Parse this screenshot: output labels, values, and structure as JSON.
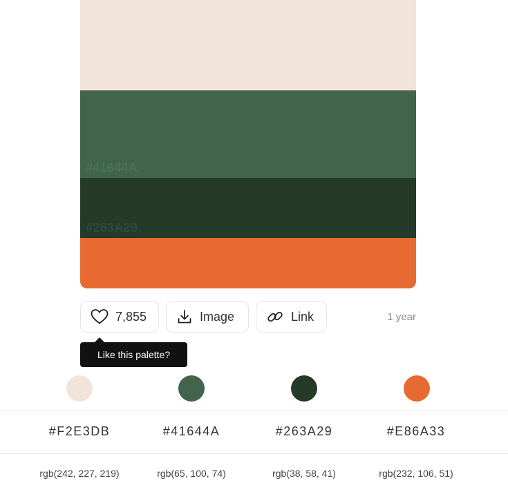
{
  "palette": {
    "colors": [
      {
        "hex": "#F2E3DB",
        "rgb": "rgb(242, 227, 219)",
        "band_label": "",
        "color": "#F2E3DB"
      },
      {
        "hex": "#41644A",
        "rgb": "rgb(65, 100, 74)",
        "band_label": "#41644A",
        "color": "#41644A"
      },
      {
        "hex": "#263A29",
        "rgb": "rgb(38, 58, 41)",
        "band_label": "#263A29",
        "color": "#263A29"
      },
      {
        "hex": "#E86A33",
        "rgb": "rgb(232, 106, 51)",
        "band_label": "",
        "color": "#E86A33"
      }
    ]
  },
  "actions": {
    "likes": "7,855",
    "image_label": "Image",
    "link_label": "Link",
    "age": "1 year"
  },
  "tooltip": {
    "text": "Like this palette?"
  },
  "icons": {
    "like": "heart-icon",
    "image": "download-icon",
    "link": "link-icon"
  }
}
